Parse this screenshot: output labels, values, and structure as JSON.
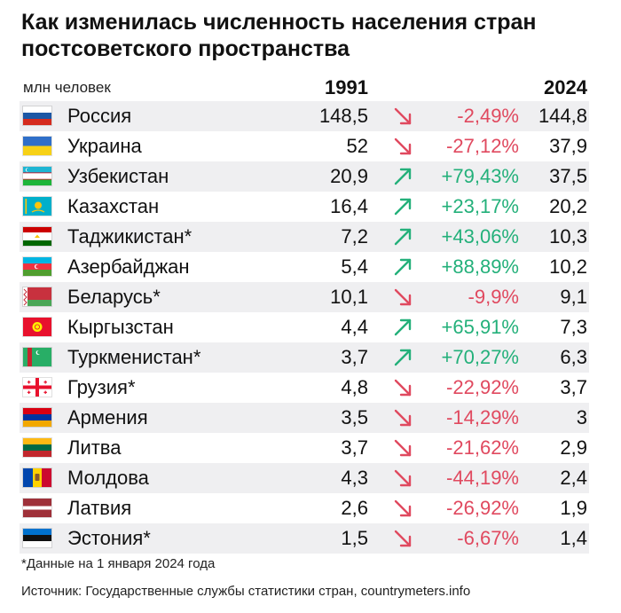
{
  "title": "Как изменилась численность населения стран постсоветского пространства",
  "unit_label": "млн человек",
  "chart_data": {
    "type": "table",
    "columns": [
      "1991",
      "",
      "2024"
    ],
    "rows": [
      {
        "flag": "russia",
        "name": "Россия",
        "v1991": "148,5",
        "dir": "down",
        "change": "-2,49%",
        "v2024": "144,8"
      },
      {
        "flag": "ukraine",
        "name": "Украина",
        "v1991": "52",
        "dir": "down",
        "change": "-27,12%",
        "v2024": "37,9"
      },
      {
        "flag": "uzbekistan",
        "name": "Узбекистан",
        "v1991": "20,9",
        "dir": "up",
        "change": "+79,43%",
        "v2024": "37,5"
      },
      {
        "flag": "kazakhstan",
        "name": "Казахстан",
        "v1991": "16,4",
        "dir": "up",
        "change": "+23,17%",
        "v2024": "20,2"
      },
      {
        "flag": "tajikistan",
        "name": "Таджикистан*",
        "v1991": "7,2",
        "dir": "up",
        "change": "+43,06%",
        "v2024": "10,3"
      },
      {
        "flag": "azerbaijan",
        "name": "Азербайджан",
        "v1991": "5,4",
        "dir": "up",
        "change": "+88,89%",
        "v2024": "10,2"
      },
      {
        "flag": "belarus",
        "name": "Беларусь*",
        "v1991": "10,1",
        "dir": "down",
        "change": "-9,9%",
        "v2024": "9,1"
      },
      {
        "flag": "kyrgyzstan",
        "name": "Кыргызстан",
        "v1991": "4,4",
        "dir": "up",
        "change": "+65,91%",
        "v2024": "7,3"
      },
      {
        "flag": "turkmenistan",
        "name": "Туркменистан*",
        "v1991": "3,7",
        "dir": "up",
        "change": "+70,27%",
        "v2024": "6,3"
      },
      {
        "flag": "georgia",
        "name": "Грузия*",
        "v1991": "4,8",
        "dir": "down",
        "change": "-22,92%",
        "v2024": "3,7"
      },
      {
        "flag": "armenia",
        "name": "Армения",
        "v1991": "3,5",
        "dir": "down",
        "change": "-14,29%",
        "v2024": "3"
      },
      {
        "flag": "lithuania",
        "name": "Литва",
        "v1991": "3,7",
        "dir": "down",
        "change": "-21,62%",
        "v2024": "2,9"
      },
      {
        "flag": "moldova",
        "name": "Молдова",
        "v1991": "4,3",
        "dir": "down",
        "change": "-44,19%",
        "v2024": "2,4"
      },
      {
        "flag": "latvia",
        "name": "Латвия",
        "v1991": "2,6",
        "dir": "down",
        "change": "-26,92%",
        "v2024": "1,9"
      },
      {
        "flag": "estonia",
        "name": "Эстония*",
        "v1991": "1,5",
        "dir": "down",
        "change": "-6,67%",
        "v2024": "1,4"
      }
    ]
  },
  "footnote": "*Данные на 1 января 2024 года",
  "source": "Источник: Государственные службы статистики стран, countrymeters.info",
  "colors": {
    "down": "#e0495f",
    "up": "#23b07a",
    "row_shade": "#efeff1"
  }
}
